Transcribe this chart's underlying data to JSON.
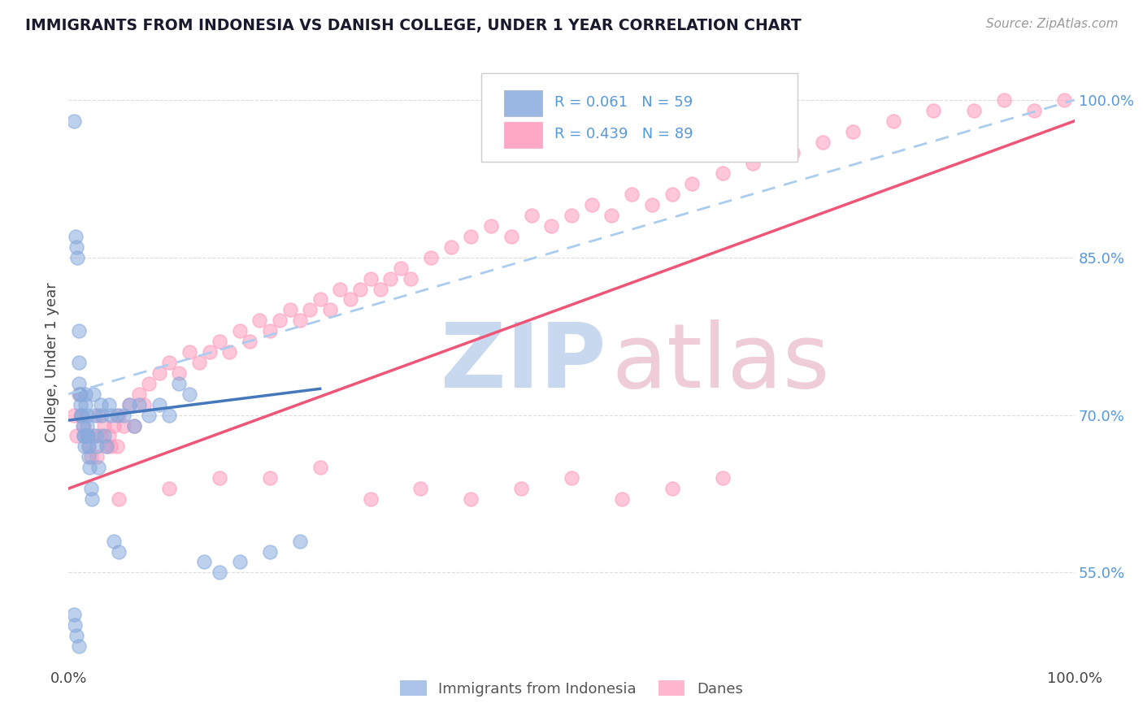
{
  "title": "IMMIGRANTS FROM INDONESIA VS DANISH COLLEGE, UNDER 1 YEAR CORRELATION CHART",
  "source": "Source: ZipAtlas.com",
  "ylabel": "College, Under 1 year",
  "xlim": [
    0.0,
    1.0
  ],
  "ylim": [
    0.46,
    1.04
  ],
  "x_tick_labels": [
    "0.0%",
    "100.0%"
  ],
  "y_tick_labels": [
    "55.0%",
    "70.0%",
    "85.0%",
    "100.0%"
  ],
  "y_tick_vals": [
    0.55,
    0.7,
    0.85,
    1.0
  ],
  "legend_blue_label": "Immigrants from Indonesia",
  "legend_pink_label": "Danes",
  "R_blue": "0.061",
  "N_blue": "59",
  "R_pink": "0.439",
  "N_pink": "89",
  "blue_color": "#88AADD",
  "pink_color": "#FF99BB",
  "blue_line_color": "#4477BB",
  "pink_line_color": "#EE5577",
  "dash_line_color": "#AACCEE",
  "blue_x": [
    0.005,
    0.007,
    0.008,
    0.009,
    0.01,
    0.01,
    0.01,
    0.011,
    0.012,
    0.012,
    0.013,
    0.013,
    0.014,
    0.015,
    0.015,
    0.016,
    0.017,
    0.017,
    0.018,
    0.018,
    0.019,
    0.019,
    0.02,
    0.02,
    0.021,
    0.022,
    0.023,
    0.025,
    0.026,
    0.027,
    0.028,
    0.03,
    0.032,
    0.033,
    0.035,
    0.038,
    0.04,
    0.042,
    0.045,
    0.048,
    0.05,
    0.055,
    0.06,
    0.065,
    0.07,
    0.08,
    0.09,
    0.1,
    0.11,
    0.12,
    0.135,
    0.15,
    0.17,
    0.2,
    0.23,
    0.005,
    0.006,
    0.008,
    0.01
  ],
  "blue_y": [
    0.98,
    0.87,
    0.86,
    0.85,
    0.78,
    0.75,
    0.73,
    0.72,
    0.72,
    0.71,
    0.7,
    0.7,
    0.69,
    0.68,
    0.68,
    0.67,
    0.72,
    0.71,
    0.7,
    0.69,
    0.68,
    0.68,
    0.67,
    0.66,
    0.65,
    0.63,
    0.62,
    0.72,
    0.7,
    0.68,
    0.67,
    0.65,
    0.71,
    0.7,
    0.68,
    0.67,
    0.71,
    0.7,
    0.58,
    0.7,
    0.57,
    0.7,
    0.71,
    0.69,
    0.71,
    0.7,
    0.71,
    0.7,
    0.73,
    0.72,
    0.56,
    0.55,
    0.56,
    0.57,
    0.58,
    0.51,
    0.5,
    0.49,
    0.48
  ],
  "pink_x": [
    0.005,
    0.008,
    0.01,
    0.012,
    0.015,
    0.018,
    0.02,
    0.022,
    0.025,
    0.028,
    0.03,
    0.032,
    0.035,
    0.038,
    0.04,
    0.042,
    0.045,
    0.048,
    0.05,
    0.055,
    0.06,
    0.065,
    0.07,
    0.075,
    0.08,
    0.09,
    0.1,
    0.11,
    0.12,
    0.13,
    0.14,
    0.15,
    0.16,
    0.17,
    0.18,
    0.19,
    0.2,
    0.21,
    0.22,
    0.23,
    0.24,
    0.25,
    0.26,
    0.27,
    0.28,
    0.29,
    0.3,
    0.31,
    0.32,
    0.33,
    0.34,
    0.36,
    0.38,
    0.4,
    0.42,
    0.44,
    0.46,
    0.48,
    0.5,
    0.52,
    0.54,
    0.56,
    0.58,
    0.6,
    0.62,
    0.65,
    0.68,
    0.72,
    0.75,
    0.78,
    0.82,
    0.86,
    0.9,
    0.93,
    0.96,
    0.99,
    0.05,
    0.1,
    0.15,
    0.2,
    0.25,
    0.3,
    0.35,
    0.4,
    0.45,
    0.5,
    0.55,
    0.6,
    0.65
  ],
  "pink_y": [
    0.7,
    0.68,
    0.72,
    0.7,
    0.69,
    0.68,
    0.67,
    0.66,
    0.68,
    0.66,
    0.7,
    0.68,
    0.69,
    0.67,
    0.68,
    0.67,
    0.69,
    0.67,
    0.7,
    0.69,
    0.71,
    0.69,
    0.72,
    0.71,
    0.73,
    0.74,
    0.75,
    0.74,
    0.76,
    0.75,
    0.76,
    0.77,
    0.76,
    0.78,
    0.77,
    0.79,
    0.78,
    0.79,
    0.8,
    0.79,
    0.8,
    0.81,
    0.8,
    0.82,
    0.81,
    0.82,
    0.83,
    0.82,
    0.83,
    0.84,
    0.83,
    0.85,
    0.86,
    0.87,
    0.88,
    0.87,
    0.89,
    0.88,
    0.89,
    0.9,
    0.89,
    0.91,
    0.9,
    0.91,
    0.92,
    0.93,
    0.94,
    0.95,
    0.96,
    0.97,
    0.98,
    0.99,
    0.99,
    1.0,
    0.99,
    1.0,
    0.62,
    0.63,
    0.64,
    0.64,
    0.65,
    0.62,
    0.63,
    0.62,
    0.63,
    0.64,
    0.62,
    0.63,
    0.64
  ],
  "blue_line_x0": 0.0,
  "blue_line_y0": 0.695,
  "blue_line_x1": 0.25,
  "blue_line_y1": 0.725,
  "pink_line_x0": 0.0,
  "pink_line_y0": 0.63,
  "pink_line_x1": 1.0,
  "pink_line_y1": 0.98,
  "dash_line_x0": 0.0,
  "dash_line_y0": 0.72,
  "dash_line_x1": 1.0,
  "dash_line_y1": 1.0
}
